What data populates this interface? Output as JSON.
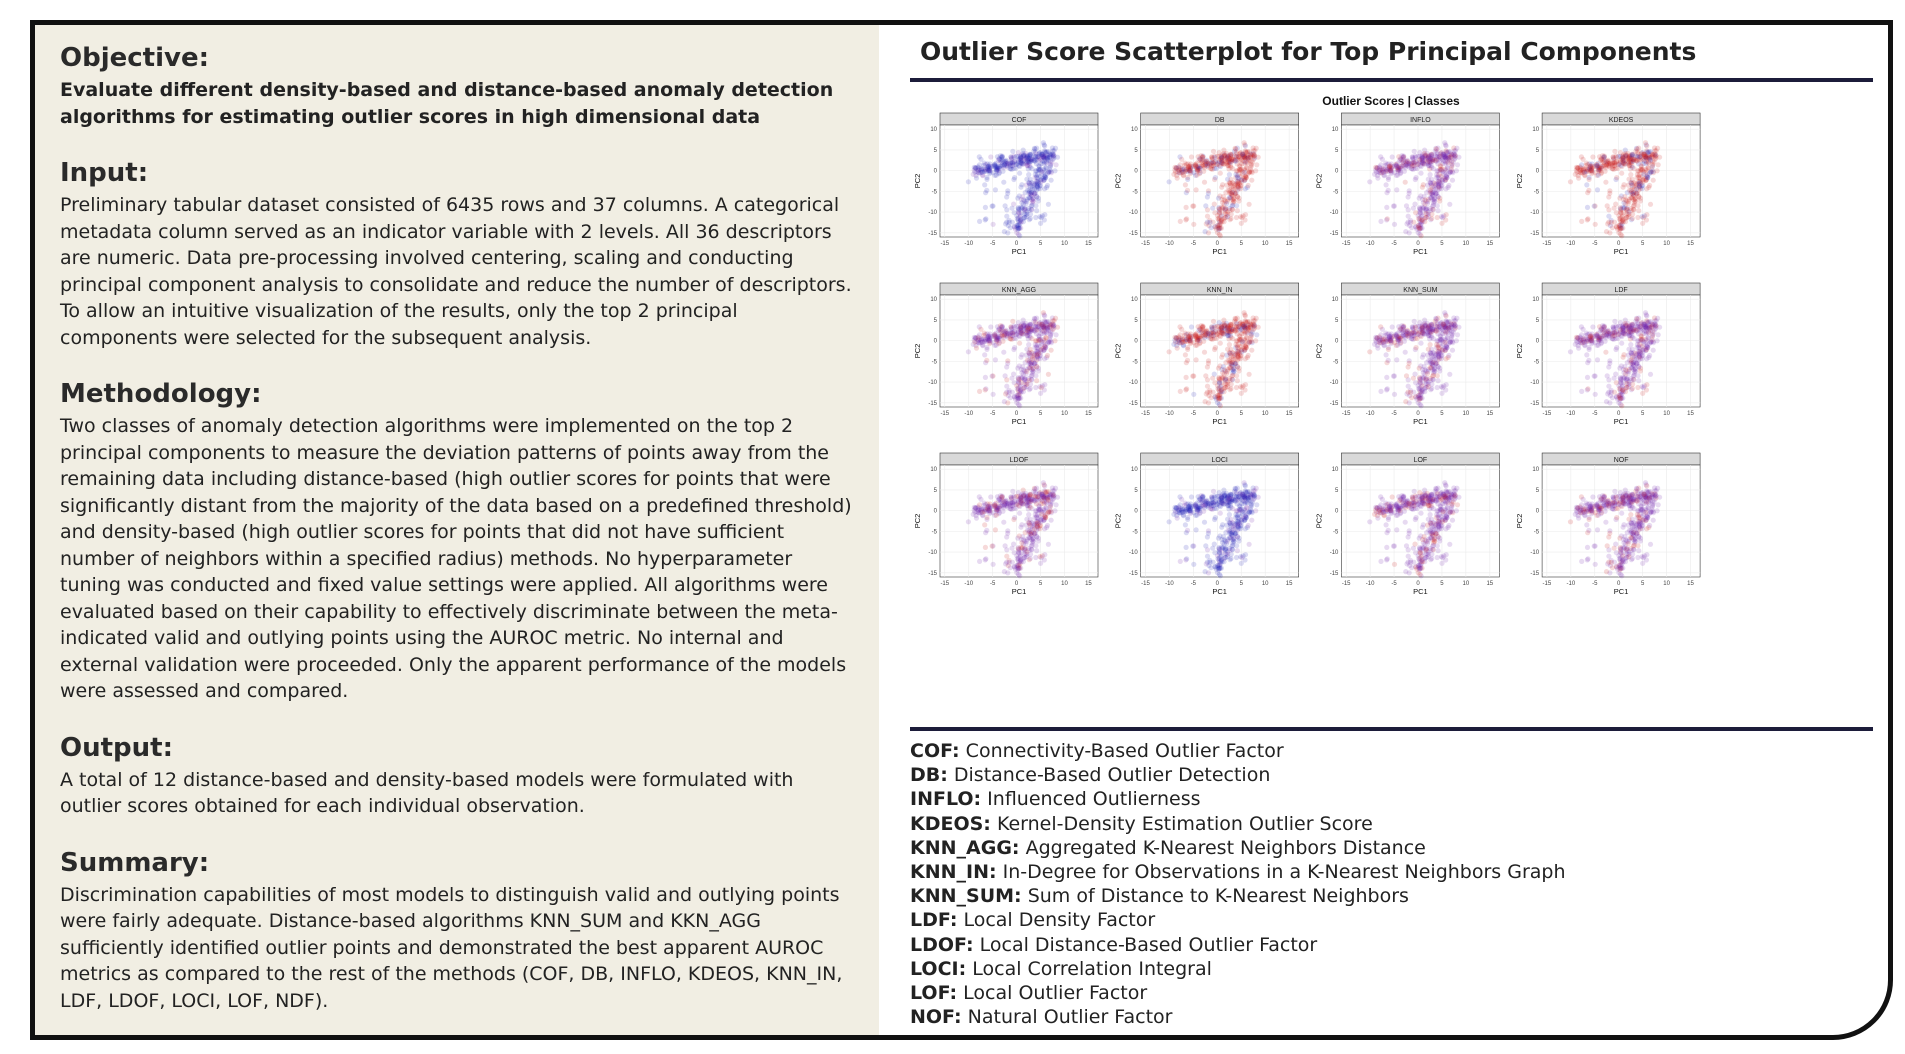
{
  "left": {
    "sections": [
      {
        "heading": "Objective:",
        "body": "Evaluate different density-based and distance-based anomaly detection algorithms for estimating outlier scores in high dimensional data"
      },
      {
        "heading": "Input:",
        "body": "Preliminary tabular dataset consisted of 6435 rows and 37 columns. A categorical metadata column served as an indicator variable with 2 levels. All 36 descriptors are numeric. Data pre-processing involved centering, scaling and conducting principal component analysis to consolidate and reduce the number of descriptors. To allow an intuitive visualization of the results, only the top 2 principal components were selected for the subsequent analysis."
      },
      {
        "heading": "Methodology:",
        "body": "Two classes of anomaly detection algorithms were implemented on the top 2 principal components to measure the deviation patterns of points away from the remaining data including distance-based (high outlier scores for points that were significantly distant from the majority of the data based on a predefined threshold) and density-based (high outlier scores for points that did not have sufficient number of neighbors within a specified radius) methods. No hyperparameter tuning was conducted and fixed value settings were applied. All algorithms were evaluated based on their capability to effectively discriminate between the meta-indicated valid and outlying points using the AUROC metric. No internal and external validation were proceeded. Only the apparent performance of the models were assessed and compared."
      },
      {
        "heading": "Output:",
        "body": "A total of 12 distance-based and density-based models were formulated with outlier scores obtained for each individual observation."
      },
      {
        "heading": "Summary:",
        "body": "Discrimination capabilities of most models to distinguish valid and outlying points were fairly adequate. Distance-based algorithms KNN_SUM and KKN_AGG sufficiently identified outlier points and demonstrated the best apparent AUROC metrics as compared to the rest of the methods (COF, DB, INFLO, KDEOS, KNN_IN, LDF, LDOF, LOCI, LOF, NDF)."
      }
    ]
  },
  "right": {
    "title": "Outlier Score Scatterplot for Top Principal Components",
    "figure_title": "Outlier Scores | Classes",
    "legend": [
      {
        "abbr": "COF:",
        "text": " Connectivity-Based Outlier Factor"
      },
      {
        "abbr": "DB:",
        "text": " Distance-Based Outlier Detection"
      },
      {
        "abbr": "INFLO:",
        "text": " Influenced Outlierness"
      },
      {
        "abbr": "KDEOS:",
        "text": " Kernel-Density Estimation Outlier Score"
      },
      {
        "abbr": "KNN_AGG:",
        "text": " Aggregated K-Nearest Neighbors Distance"
      },
      {
        "abbr": "KNN_IN:",
        "text": " In-Degree for Observations in a K-Nearest Neighbors Graph"
      },
      {
        "abbr": "KNN_SUM:",
        "text": " Sum of Distance to K-Nearest Neighbors"
      },
      {
        "abbr": "LDF:",
        "text": " Local Density Factor"
      },
      {
        "abbr": "LDOF:",
        "text": " Local Distance-Based Outlier Factor"
      },
      {
        "abbr": "LOCI:",
        "text": " Local Correlation Integral"
      },
      {
        "abbr": "LOF:",
        "text": " Local Outlier Factor"
      },
      {
        "abbr": "NOF:",
        "text": " Natural Outlier Factor"
      }
    ]
  },
  "chart_data": {
    "type": "scatter",
    "title": "Outlier Scores | Classes",
    "xlabel": "PC1",
    "ylabel": "PC2",
    "xlim": [
      -16,
      17
    ],
    "ylim": [
      -16,
      11
    ],
    "x_ticks": [
      -15,
      -10,
      -5,
      0,
      5,
      10,
      15
    ],
    "y_ticks": [
      10,
      5,
      0,
      -5,
      -10,
      -15
    ],
    "panels": [
      {
        "name": "COF",
        "dominant": "blue"
      },
      {
        "name": "DB",
        "dominant": "red"
      },
      {
        "name": "INFLO",
        "dominant": "purple"
      },
      {
        "name": "KDEOS",
        "dominant": "red"
      },
      {
        "name": "KNN_AGG",
        "dominant": "purple"
      },
      {
        "name": "KNN_IN",
        "dominant": "red"
      },
      {
        "name": "KNN_SUM",
        "dominant": "purple"
      },
      {
        "name": "LDF",
        "dominant": "purple"
      },
      {
        "name": "LDOF",
        "dominant": "purple"
      },
      {
        "name": "LOCI",
        "dominant": "blue"
      },
      {
        "name": "LOF",
        "dominant": "purple"
      },
      {
        "name": "NOF",
        "dominant": "purple"
      }
    ],
    "colors": {
      "blue": "#1a1ab4",
      "red": "#c81414",
      "purple": "#6a1aa8"
    },
    "grid": true
  }
}
